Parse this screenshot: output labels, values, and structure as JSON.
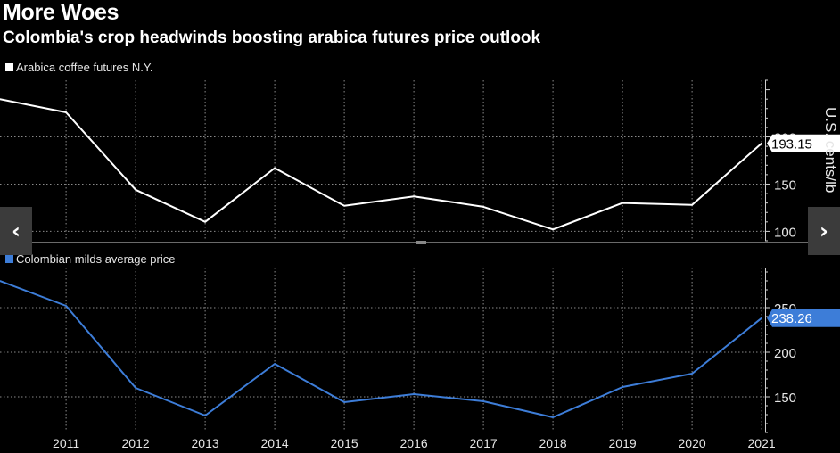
{
  "header": {
    "title": "More Woes",
    "subtitle": "Colombia's crop headwinds boosting arabica futures price outlook"
  },
  "nav": {
    "prev_icon": "chevron-left-icon",
    "next_icon": "chevron-right-icon"
  },
  "chart_data": [
    {
      "type": "line",
      "legend": "Arabica coffee futures N.Y.",
      "color": "#ffffff",
      "ylabel": "U.S. cents/lb",
      "last_value_label": "193.15",
      "x": [
        2010.0,
        2010.95,
        2011.95,
        2012.95,
        2013.95,
        2014.95,
        2015.95,
        2016.95,
        2017.95,
        2018.95,
        2019.95,
        2020.95
      ],
      "values": [
        240,
        226,
        144,
        110,
        167,
        127,
        137,
        126,
        102,
        130,
        128,
        193.15
      ],
      "yticks": [
        100,
        150,
        200
      ],
      "ylim": [
        90,
        260
      ]
    },
    {
      "type": "line",
      "legend": "Colombian milds average price",
      "color": "#3d7dd8",
      "last_value_label": "238.26",
      "x": [
        2010.0,
        2010.95,
        2011.95,
        2012.95,
        2013.95,
        2014.95,
        2015.95,
        2016.95,
        2017.95,
        2018.95,
        2019.95,
        2020.95
      ],
      "values": [
        280,
        252,
        160,
        129,
        187,
        144,
        153,
        145,
        127,
        161,
        176,
        238.26
      ],
      "yticks": [
        150,
        200,
        250
      ],
      "ylim": [
        110,
        295
      ]
    }
  ],
  "xaxis": {
    "ticks": [
      "2011",
      "2012",
      "2013",
      "2014",
      "2015",
      "2016",
      "2017",
      "2018",
      "2019",
      "2020",
      "2021"
    ],
    "range": [
      2010.0,
      2021.0
    ]
  }
}
